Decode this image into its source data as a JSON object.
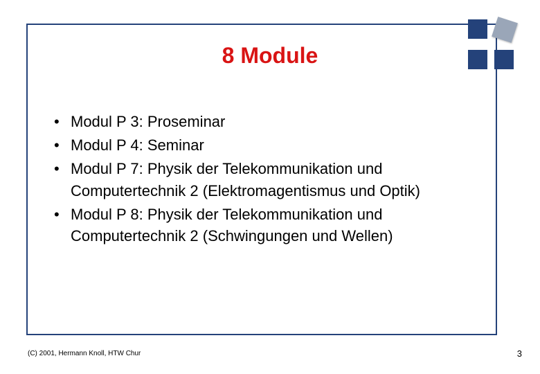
{
  "title": {
    "text": "8 Module",
    "color": "#d91414"
  },
  "bullets": [
    "Modul P 3: Proseminar",
    "Modul P 4: Seminar",
    "Modul P 7: Physik der Telekommunikation und Computertechnik 2 (Elektromagentismus und Optik)",
    "Modul P 8: Physik der Telekommunikation und Computertechnik 2 (Schwingungen und Wellen)"
  ],
  "footer": "(C) 2001, Hermann Knoll, HTW Chur",
  "page_number": "3",
  "colors": {
    "frame": "#24427a",
    "square_dark": "#24427a",
    "square_light": "#9aa6b8",
    "title": "#d91414",
    "text": "#000000",
    "background": "#ffffff"
  },
  "decor": {
    "sq1_color": "#24427a",
    "sq2_color": "#24427a",
    "sq3_color": "#24427a",
    "sq4_color": "#9aa6b8"
  }
}
